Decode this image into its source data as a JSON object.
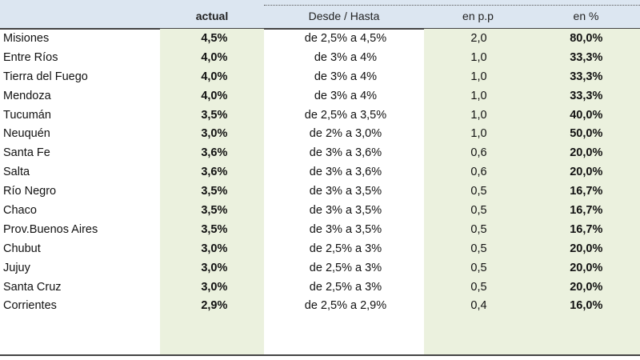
{
  "headers": [
    "",
    "actual",
    "Desde / Hasta",
    "en p.p",
    "en %"
  ],
  "rows": [
    [
      "Misiones",
      "4,5%",
      "de 2,5% a 4,5%",
      "2,0",
      "80,0%"
    ],
    [
      "Entre Ríos",
      "4,0%",
      "de 3% a 4%",
      "1,0",
      "33,3%"
    ],
    [
      "Tierra del Fuego",
      "4,0%",
      "de 3% a 4%",
      "1,0",
      "33,3%"
    ],
    [
      "Mendoza",
      "4,0%",
      "de 3% a 4%",
      "1,0",
      "33,3%"
    ],
    [
      "Tucumán",
      "3,5%",
      "de 2,5% a 3,5%",
      "1,0",
      "40,0%"
    ],
    [
      "Neuquén",
      "3,0%",
      "de 2% a 3,0%",
      "1,0",
      "50,0%"
    ],
    [
      "Santa Fe",
      "3,6%",
      "de 3% a 3,6%",
      "0,6",
      "20,0%"
    ],
    [
      "Salta",
      "3,6%",
      "de 3% a 3,6%",
      "0,6",
      "20,0%"
    ],
    [
      "Río Negro",
      "3,5%",
      "de 3% a 3,5%",
      "0,5",
      "16,7%"
    ],
    [
      "Chaco",
      "3,5%",
      "de 3% a 3,5%",
      "0,5",
      "16,7%"
    ],
    [
      "Prov.Buenos Aires",
      "3,5%",
      "de 3% a 3,5%",
      "0,5",
      "16,7%"
    ],
    [
      "Chubut",
      "3,0%",
      "de 2,5% a 3%",
      "0,5",
      "20,0%"
    ],
    [
      "Jujuy",
      "3,0%",
      "de 2,5% a 3%",
      "0,5",
      "20,0%"
    ],
    [
      "Santa Cruz",
      "3,0%",
      "de 2,5% a 3%",
      "0,5",
      "20,0%"
    ],
    [
      "Corrientes",
      "2,9%",
      "de 2,5% a 2,9%",
      "0,4",
      "16,0%"
    ]
  ],
  "colors": {
    "header_bg": "#dce6f1",
    "highlight": "#ebf1de"
  }
}
